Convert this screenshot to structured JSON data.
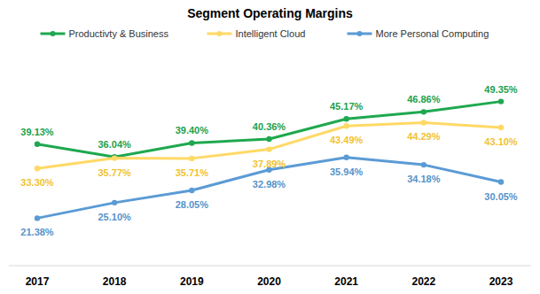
{
  "chart_data": {
    "type": "line",
    "title": "Segment Operating Margins",
    "categories": [
      "2017",
      "2018",
      "2019",
      "2020",
      "2021",
      "2022",
      "2023"
    ],
    "series": [
      {
        "name": "Productivty & Business",
        "color": "#1fa84f",
        "marker": "circle",
        "values": [
          39.13,
          36.04,
          39.4,
          40.36,
          45.17,
          46.86,
          49.35
        ],
        "value_labels": [
          "39.13%",
          "36.04%",
          "39.40%",
          "40.36%",
          "45.17%",
          "46.86%",
          "49.35%"
        ]
      },
      {
        "name": "Intelligent Cloud",
        "color": "#ffd966",
        "marker": "circle",
        "values": [
          33.3,
          35.77,
          35.71,
          37.89,
          43.49,
          44.29,
          43.1
        ],
        "value_labels": [
          "33.30%",
          "35.77%",
          "35.71%",
          "37.89%",
          "43.49%",
          "44.29%",
          "43.10%"
        ]
      },
      {
        "name": "More Personal Computing",
        "color": "#5b9bd5",
        "marker": "circle",
        "values": [
          21.38,
          25.1,
          28.05,
          32.98,
          35.94,
          34.18,
          30.05
        ],
        "value_labels": [
          "21.38%",
          "25.10%",
          "28.05%",
          "32.98%",
          "35.94%",
          "34.18%",
          "30.05%"
        ]
      }
    ],
    "ylim": [
      10,
      55
    ],
    "data_labels": true,
    "tick_labels": "x",
    "legend": "top",
    "grid": false
  }
}
